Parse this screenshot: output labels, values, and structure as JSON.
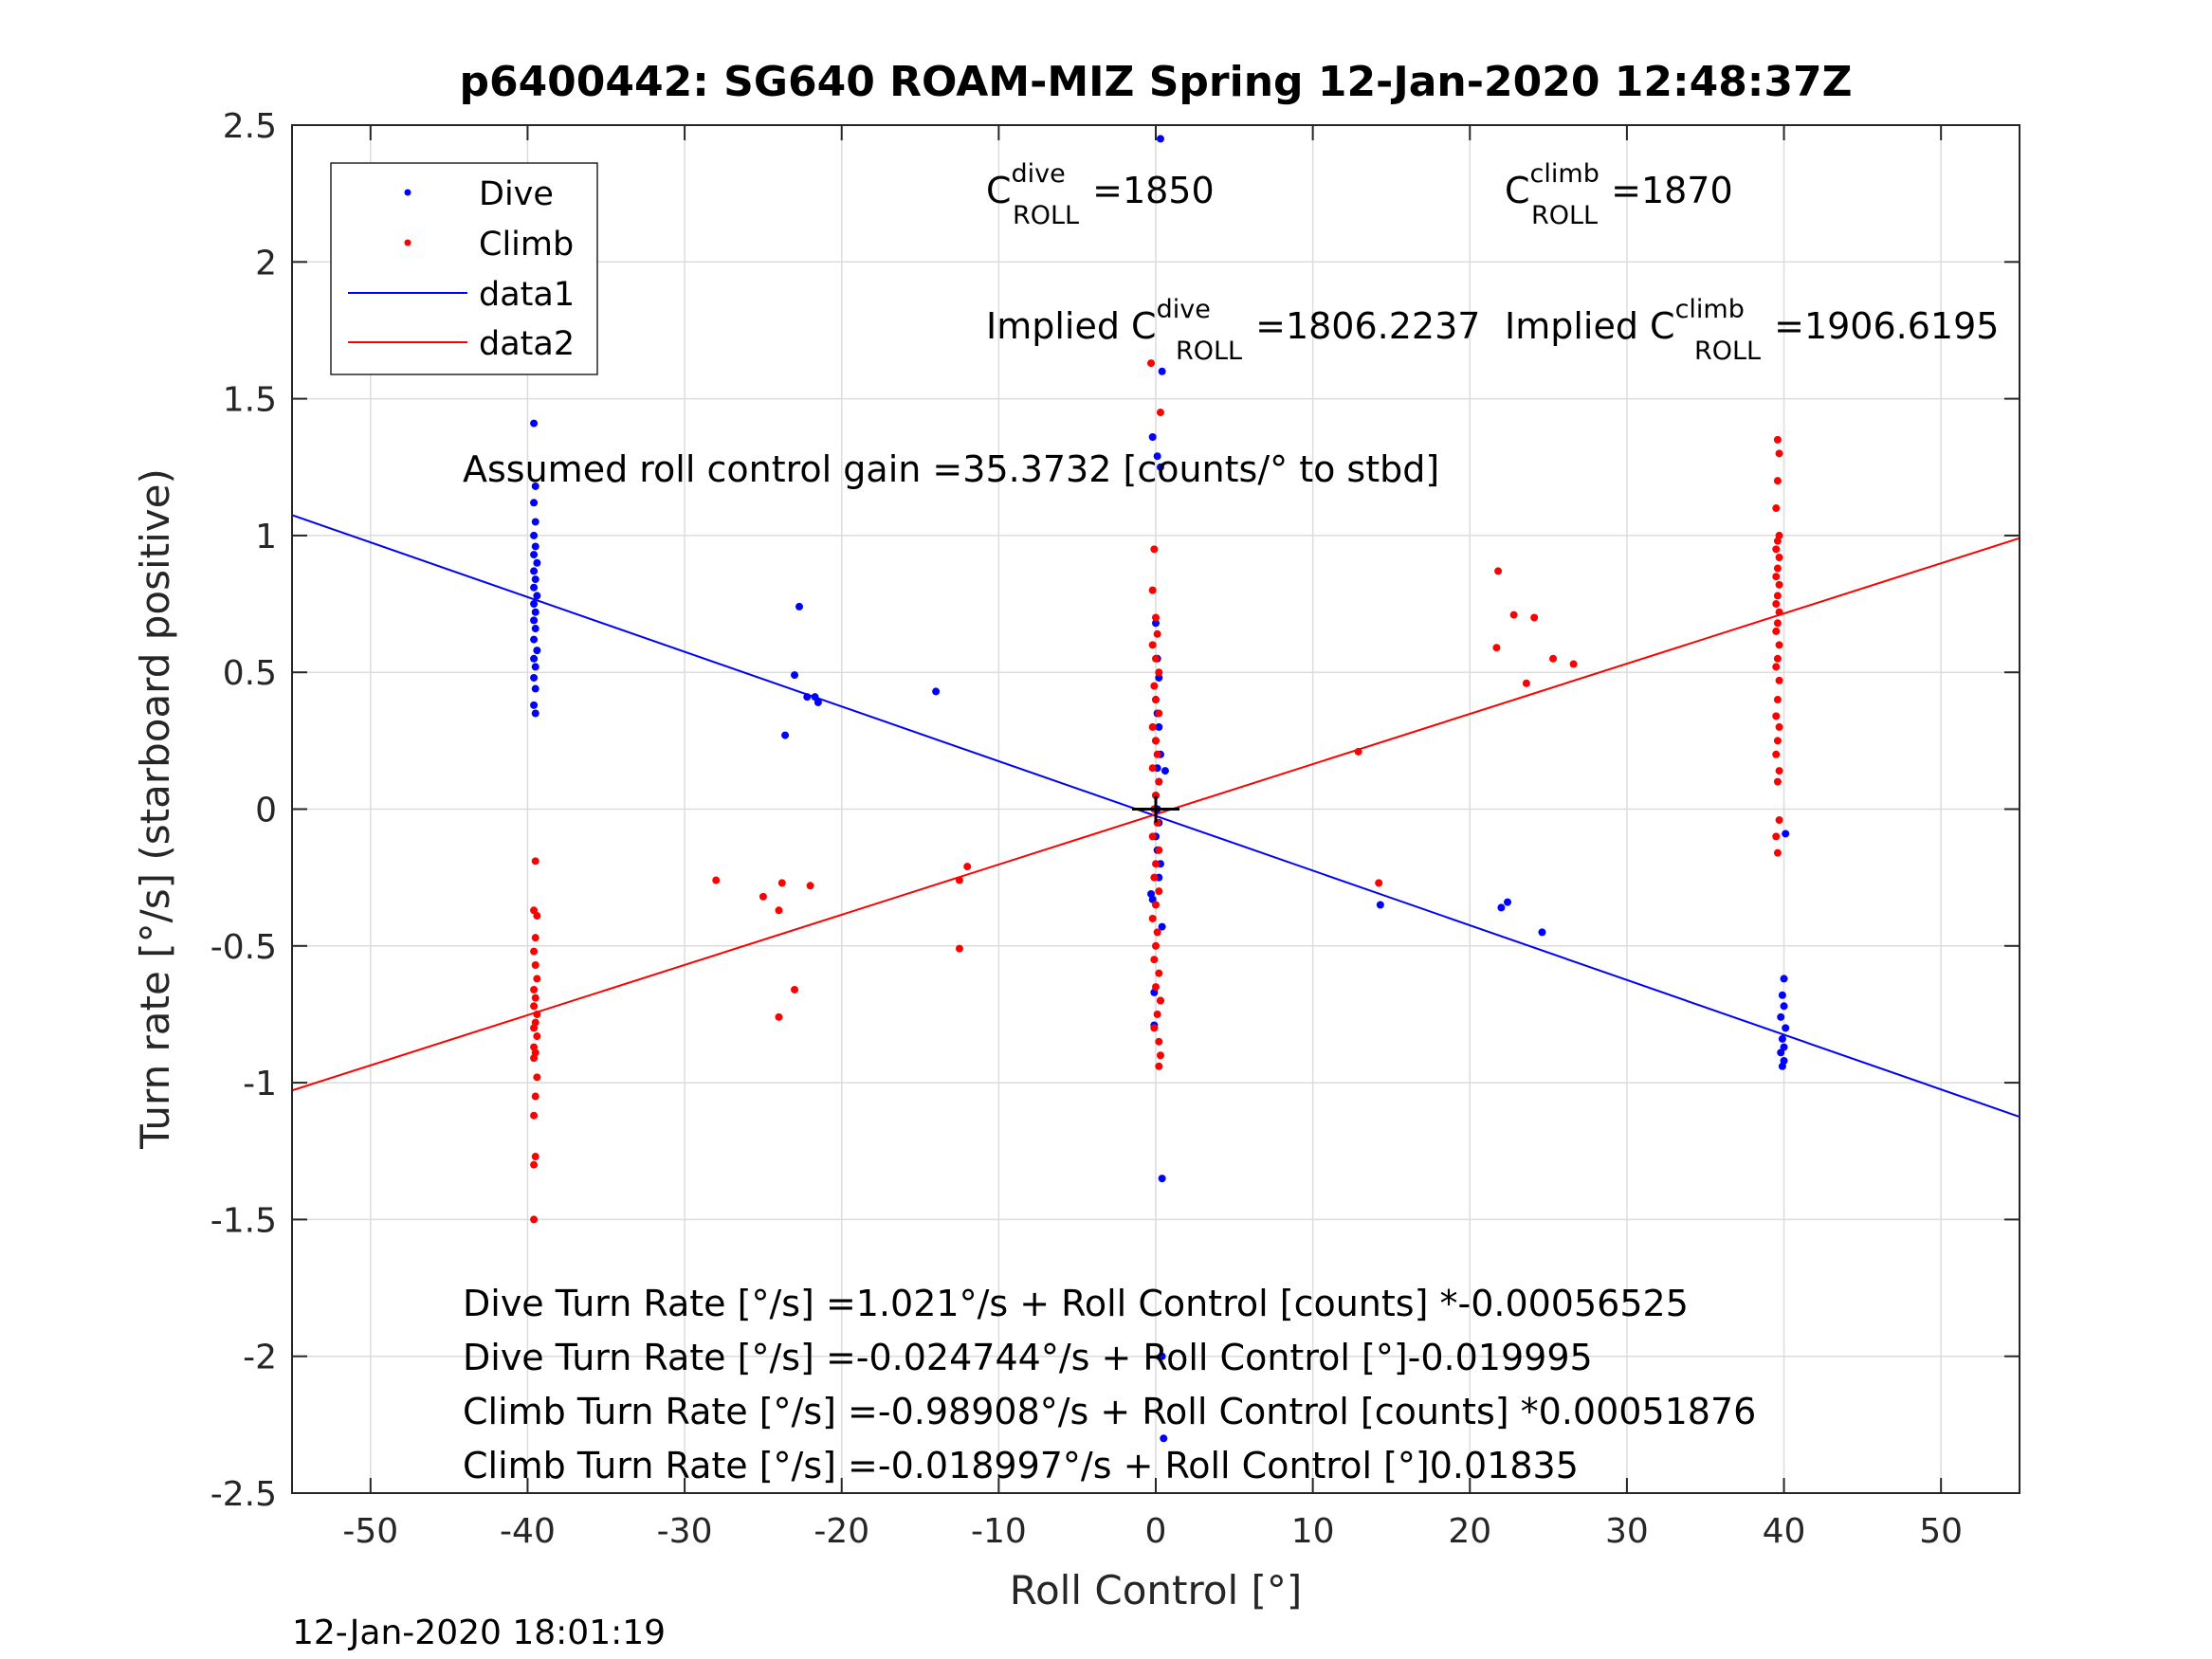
{
  "chart_data": {
    "type": "scatter",
    "title": "p6400442: SG640 ROAM-MIZ Spring 12-Jan-2020 12:48:37Z",
    "xlabel": "Roll Control [°]",
    "ylabel": "Turn rate [°/s] (starboard positive)",
    "xlim": [
      -55,
      55
    ],
    "ylim": [
      -2.5,
      2.5
    ],
    "xticks": [
      -50,
      -40,
      -30,
      -20,
      -10,
      0,
      10,
      20,
      30,
      40,
      50
    ],
    "xtick_labels": [
      "-50",
      "-40",
      "-30",
      "-20",
      "-10",
      "0",
      "10",
      "20",
      "30",
      "40",
      "50"
    ],
    "yticks": [
      2.5,
      2,
      1.5,
      1,
      0.5,
      0,
      -0.5,
      -1,
      -1.5,
      -2,
      -2.5
    ],
    "ytick_labels": [
      "2.5",
      "2",
      "1.5",
      "1",
      "0.5",
      "0",
      "-0.5",
      "-1",
      "-1.5",
      "-2",
      "-2.5"
    ],
    "grid": true,
    "legend_position": "top-left",
    "legend": [
      {
        "label": "Dive",
        "kind": "marker",
        "color": "#0000ff"
      },
      {
        "label": "Climb",
        "kind": "marker",
        "color": "#ff0000"
      },
      {
        "label": "data1",
        "kind": "line",
        "color": "#0000ff"
      },
      {
        "label": "data2",
        "kind": "line",
        "color": "#ff0000"
      }
    ],
    "series": [
      {
        "name": "Dive",
        "kind": "scatter",
        "color": "#0000ff",
        "points": [
          [
            -39.6,
            1.41
          ],
          [
            -39.5,
            1.18
          ],
          [
            -39.6,
            1.12
          ],
          [
            -39.5,
            1.05
          ],
          [
            -39.6,
            1.0
          ],
          [
            -39.5,
            0.96
          ],
          [
            -39.6,
            0.93
          ],
          [
            -39.4,
            0.9
          ],
          [
            -39.6,
            0.87
          ],
          [
            -39.5,
            0.84
          ],
          [
            -39.6,
            0.81
          ],
          [
            -39.4,
            0.78
          ],
          [
            -39.6,
            0.75
          ],
          [
            -39.5,
            0.72
          ],
          [
            -39.6,
            0.69
          ],
          [
            -39.5,
            0.66
          ],
          [
            -39.6,
            0.62
          ],
          [
            -39.4,
            0.58
          ],
          [
            -39.6,
            0.55
          ],
          [
            -39.5,
            0.52
          ],
          [
            -39.6,
            0.48
          ],
          [
            -39.5,
            0.44
          ],
          [
            -39.6,
            0.38
          ],
          [
            -39.5,
            0.35
          ],
          [
            -22.7,
            0.74
          ],
          [
            -23.0,
            0.49
          ],
          [
            -22.2,
            0.41
          ],
          [
            -21.7,
            0.41
          ],
          [
            -21.5,
            0.39
          ],
          [
            -23.6,
            0.27
          ],
          [
            -14.0,
            0.43
          ],
          [
            0.3,
            2.45
          ],
          [
            0.4,
            1.6
          ],
          [
            -0.2,
            1.36
          ],
          [
            0.1,
            1.29
          ],
          [
            0.3,
            1.25
          ],
          [
            0.0,
            0.68
          ],
          [
            0.1,
            0.55
          ],
          [
            0.2,
            0.48
          ],
          [
            0.0,
            0.4
          ],
          [
            0.1,
            0.35
          ],
          [
            0.2,
            0.3
          ],
          [
            0.0,
            0.25
          ],
          [
            0.3,
            0.2
          ],
          [
            0.1,
            0.15
          ],
          [
            0.6,
            0.14
          ],
          [
            0.2,
            0.1
          ],
          [
            0.0,
            0.05
          ],
          [
            0.1,
            0.0
          ],
          [
            0.2,
            -0.05
          ],
          [
            0.0,
            -0.1
          ],
          [
            0.1,
            -0.15
          ],
          [
            0.3,
            -0.2
          ],
          [
            0.2,
            -0.25
          ],
          [
            -0.3,
            -0.31
          ],
          [
            -0.2,
            -0.33
          ],
          [
            0.4,
            -0.43
          ],
          [
            -0.1,
            -0.67
          ],
          [
            0.3,
            -0.7
          ],
          [
            -0.1,
            -0.79
          ],
          [
            0.4,
            -1.35
          ],
          [
            0.4,
            -2.0
          ],
          [
            0.5,
            -2.3
          ],
          [
            14.3,
            -0.35
          ],
          [
            22.0,
            -0.36
          ],
          [
            22.4,
            -0.34
          ],
          [
            24.6,
            -0.45
          ],
          [
            40.1,
            -0.09
          ],
          [
            40.0,
            -0.62
          ],
          [
            39.9,
            -0.68
          ],
          [
            40.0,
            -0.72
          ],
          [
            39.8,
            -0.76
          ],
          [
            40.1,
            -0.8
          ],
          [
            39.9,
            -0.84
          ],
          [
            40.0,
            -0.87
          ],
          [
            39.8,
            -0.89
          ],
          [
            40.0,
            -0.92
          ],
          [
            39.9,
            -0.94
          ]
        ]
      },
      {
        "name": "Climb",
        "kind": "scatter",
        "color": "#ff0000",
        "points": [
          [
            -39.5,
            -0.19
          ],
          [
            -39.6,
            -0.37
          ],
          [
            -39.4,
            -0.39
          ],
          [
            -39.5,
            -0.47
          ],
          [
            -39.6,
            -0.52
          ],
          [
            -39.5,
            -0.57
          ],
          [
            -39.4,
            -0.62
          ],
          [
            -39.6,
            -0.66
          ],
          [
            -39.5,
            -0.69
          ],
          [
            -39.6,
            -0.72
          ],
          [
            -39.4,
            -0.75
          ],
          [
            -39.5,
            -0.78
          ],
          [
            -39.6,
            -0.8
          ],
          [
            -39.4,
            -0.83
          ],
          [
            -39.6,
            -0.87
          ],
          [
            -39.5,
            -0.89
          ],
          [
            -39.6,
            -0.91
          ],
          [
            -39.4,
            -0.98
          ],
          [
            -39.5,
            -1.05
          ],
          [
            -39.6,
            -1.12
          ],
          [
            -39.5,
            -1.27
          ],
          [
            -39.6,
            -1.3
          ],
          [
            -39.6,
            -1.5
          ],
          [
            -28.0,
            -0.26
          ],
          [
            -25.0,
            -0.32
          ],
          [
            -23.8,
            -0.27
          ],
          [
            -24.0,
            -0.37
          ],
          [
            -22.0,
            -0.28
          ],
          [
            -23.0,
            -0.66
          ],
          [
            -24.0,
            -0.76
          ],
          [
            -12.0,
            -0.21
          ],
          [
            -12.5,
            -0.26
          ],
          [
            -12.5,
            -0.51
          ],
          [
            -0.3,
            1.63
          ],
          [
            0.3,
            1.45
          ],
          [
            -0.1,
            0.95
          ],
          [
            -0.2,
            0.8
          ],
          [
            0.0,
            0.7
          ],
          [
            0.1,
            0.64
          ],
          [
            -0.2,
            0.6
          ],
          [
            0.0,
            0.55
          ],
          [
            0.2,
            0.5
          ],
          [
            -0.1,
            0.45
          ],
          [
            0.0,
            0.4
          ],
          [
            0.2,
            0.35
          ],
          [
            -0.2,
            0.3
          ],
          [
            0.0,
            0.25
          ],
          [
            0.1,
            0.2
          ],
          [
            -0.2,
            0.15
          ],
          [
            0.2,
            0.1
          ],
          [
            0.0,
            0.05
          ],
          [
            -0.1,
            0.0
          ],
          [
            0.1,
            -0.05
          ],
          [
            -0.2,
            -0.1
          ],
          [
            0.2,
            -0.15
          ],
          [
            0.0,
            -0.2
          ],
          [
            -0.1,
            -0.25
          ],
          [
            0.2,
            -0.3
          ],
          [
            0.0,
            -0.35
          ],
          [
            -0.2,
            -0.4
          ],
          [
            0.1,
            -0.45
          ],
          [
            0.0,
            -0.5
          ],
          [
            -0.1,
            -0.55
          ],
          [
            0.2,
            -0.6
          ],
          [
            0.0,
            -0.65
          ],
          [
            0.3,
            -0.7
          ],
          [
            0.1,
            -0.75
          ],
          [
            -0.1,
            -0.8
          ],
          [
            0.2,
            -0.85
          ],
          [
            0.3,
            -0.9
          ],
          [
            0.2,
            -0.94
          ],
          [
            12.9,
            0.21
          ],
          [
            14.2,
            -0.27
          ],
          [
            21.8,
            0.87
          ],
          [
            21.7,
            0.59
          ],
          [
            22.8,
            0.71
          ],
          [
            24.1,
            0.7
          ],
          [
            25.3,
            0.55
          ],
          [
            26.6,
            0.53
          ],
          [
            23.6,
            0.46
          ],
          [
            39.6,
            1.35
          ],
          [
            39.7,
            1.3
          ],
          [
            39.6,
            1.2
          ],
          [
            39.5,
            1.1
          ],
          [
            39.7,
            1.0
          ],
          [
            39.6,
            0.98
          ],
          [
            39.5,
            0.95
          ],
          [
            39.7,
            0.92
          ],
          [
            39.6,
            0.88
          ],
          [
            39.5,
            0.85
          ],
          [
            39.7,
            0.82
          ],
          [
            39.6,
            0.78
          ],
          [
            39.5,
            0.75
          ],
          [
            39.7,
            0.72
          ],
          [
            39.6,
            0.68
          ],
          [
            39.5,
            0.65
          ],
          [
            39.7,
            0.6
          ],
          [
            39.6,
            0.55
          ],
          [
            39.5,
            0.52
          ],
          [
            39.7,
            0.47
          ],
          [
            39.6,
            0.4
          ],
          [
            39.5,
            0.34
          ],
          [
            39.7,
            0.3
          ],
          [
            39.6,
            0.25
          ],
          [
            39.5,
            0.2
          ],
          [
            39.7,
            0.14
          ],
          [
            39.6,
            0.1
          ],
          [
            39.7,
            -0.04
          ],
          [
            39.5,
            -0.1
          ],
          [
            39.6,
            -0.16
          ]
        ]
      },
      {
        "name": "data1",
        "kind": "line",
        "color": "#0000ff",
        "intercept": -0.024744,
        "slope": -0.019995
      },
      {
        "name": "data2",
        "kind": "line",
        "color": "#ff0000",
        "intercept": -0.018997,
        "slope": 0.01835
      }
    ],
    "center_marker": [
      0,
      0
    ],
    "annotations": {
      "c_dive": {
        "base": "C",
        "sup": "dive",
        "sub": "ROLL",
        "value": "=1850"
      },
      "c_climb": {
        "base": "C",
        "sup": "climb",
        "sub": "ROLL",
        "value": "=1870"
      },
      "implied_dive": {
        "base": "Implied C",
        "sup": "dive",
        "sub": "ROLL",
        "value": "=1806.2237"
      },
      "implied_climb": {
        "base": "Implied C",
        "sup": "climb",
        "sub": "ROLL",
        "value": "=1906.6195"
      },
      "gain": "Assumed roll control gain =35.3732 [counts/° to stbd]",
      "equations": [
        "Dive Turn Rate [°/s] =1.021°/s + Roll Control [counts] *-0.00056525",
        "Dive Turn Rate [°/s] =-0.024744°/s + Roll Control [°]-0.019995",
        "Climb Turn Rate [°/s] =-0.98908°/s + Roll Control [counts] *0.00051876",
        "Climb Turn Rate [°/s] =-0.018997°/s + Roll Control [°]0.01835"
      ]
    }
  },
  "timestamp": "12-Jan-2020 18:01:19"
}
